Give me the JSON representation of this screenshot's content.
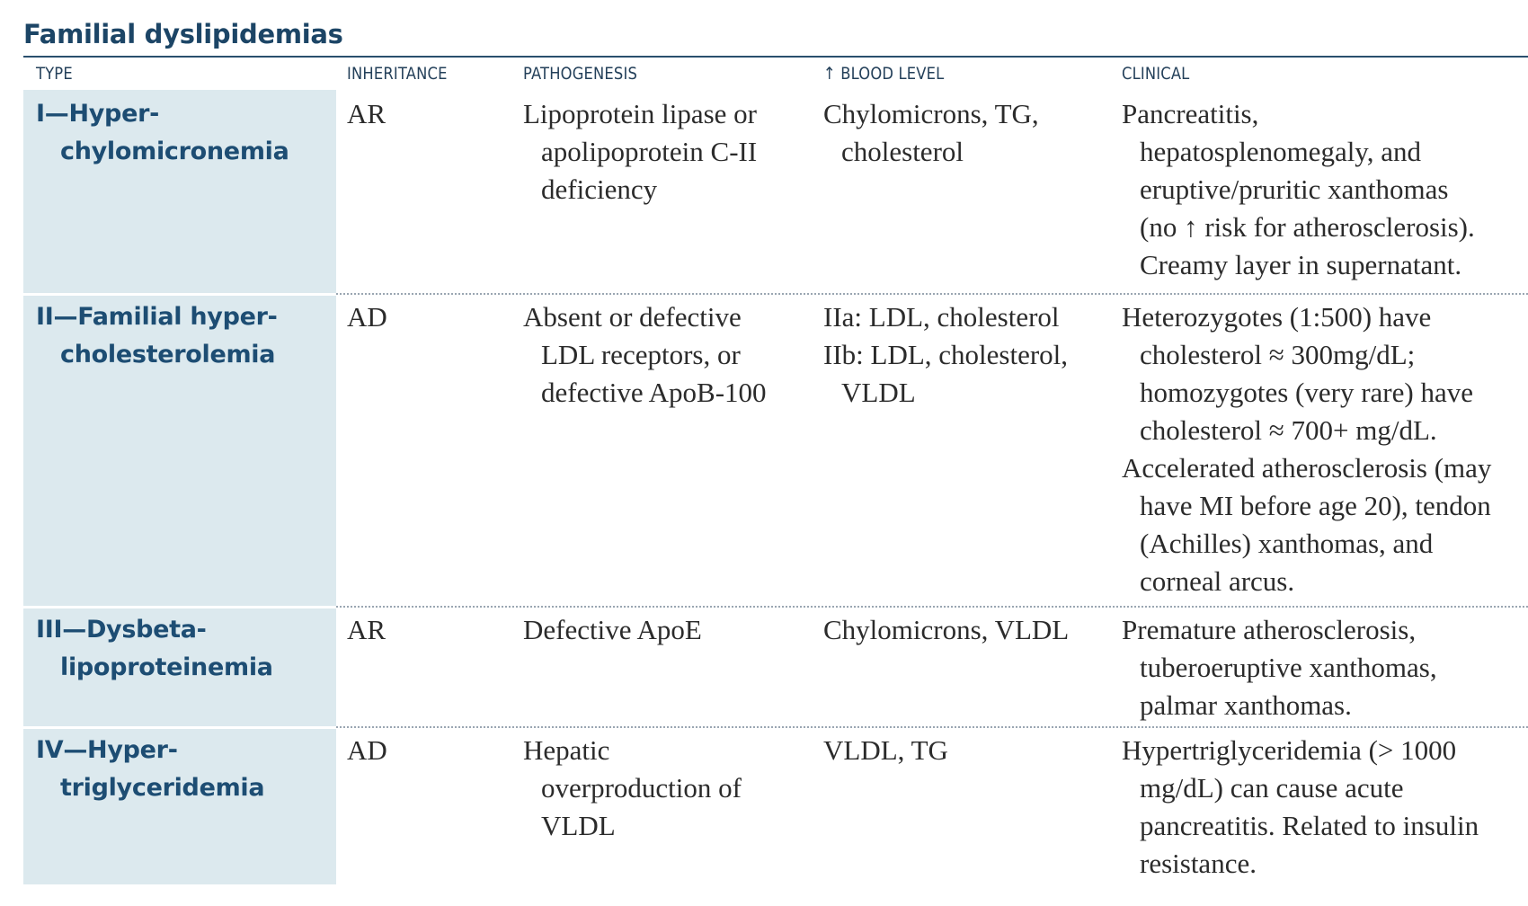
{
  "title": "Familial dyslipidemias",
  "headers": {
    "type": "TYPE",
    "inheritance": "INHERITANCE",
    "pathogenesis": "PATHOGENESIS",
    "blood_level": "↑ BLOOD LEVEL",
    "clinical": "CLINICAL"
  },
  "rows": [
    {
      "type": [
        "I—Hyper-",
        "chylomicronemia"
      ],
      "inheritance": "AR",
      "pathogenesis": [
        "Lipoprotein lipase or",
        "apolipoprotein C-II",
        "deficiency"
      ],
      "blood_level": [
        "Chylomicrons, TG,",
        "cholesterol"
      ],
      "clinical": [
        [
          "Pancreatitis,",
          "hepatosplenomegaly, and",
          "eruptive/pruritic xanthomas",
          "(no ↑ risk for atherosclerosis).",
          "Creamy layer in supernatant."
        ]
      ]
    },
    {
      "type": [
        "II—Familial hyper-",
        "cholesterolemia"
      ],
      "inheritance": "AD",
      "pathogenesis": [
        "Absent or defective",
        "LDL receptors, or",
        "defective ApoB-100"
      ],
      "blood_level": [
        "IIa: LDL, cholesterol",
        "IIb: LDL, cholesterol,",
        "VLDL"
      ],
      "clinical": [
        [
          "Heterozygotes (1:500) have",
          "cholesterol ≈ 300mg/dL;",
          "homozygotes (very rare) have",
          "cholesterol ≈ 700+ mg/dL."
        ],
        [
          "Accelerated atherosclerosis (may",
          "have MI before age 20), tendon",
          "(Achilles) xanthomas, and",
          "corneal arcus."
        ]
      ]
    },
    {
      "type": [
        "III—Dysbeta-",
        "lipoproteinemia"
      ],
      "inheritance": "AR",
      "pathogenesis": [
        "Defective ApoE"
      ],
      "blood_level": [
        "Chylomicrons, VLDL"
      ],
      "clinical": [
        [
          "Premature atherosclerosis,",
          "tuberoeruptive xanthomas,",
          "palmar xanthomas."
        ]
      ]
    },
    {
      "type": [
        "IV—Hyper-",
        "triglyceridemia"
      ],
      "inheritance": "AD",
      "pathogenesis": [
        "Hepatic",
        "overproduction of",
        "VLDL"
      ],
      "blood_level": [
        "VLDL, TG"
      ],
      "clinical": [
        [
          "Hypertriglyceridemia (> 1000",
          "mg/dL) can cause acute",
          "pancreatitis. Related to insulin",
          "resistance."
        ]
      ]
    }
  ]
}
